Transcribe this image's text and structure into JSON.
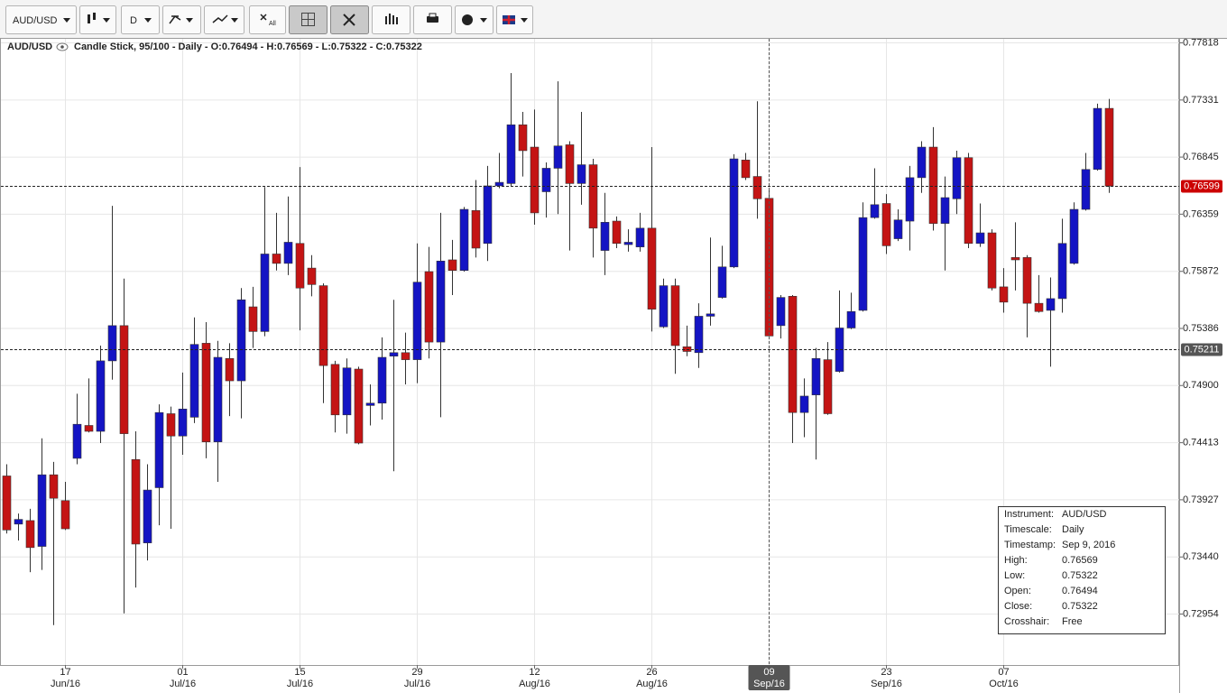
{
  "toolbar": {
    "symbol": "AUD/USD",
    "period": "D",
    "all": "All"
  },
  "chart_data": {
    "type": "candlestick",
    "title": "AUD/USD",
    "subtitle": "Candle Stick, 95/100 - Daily - O:0.76494 - H:0.76569 - L:0.75322 - C:0.75322",
    "categories": [
      null,
      null,
      null,
      null,
      null,
      {
        "day": "17",
        "month": "Jun/16"
      },
      null,
      null,
      null,
      null,
      null,
      null,
      null,
      null,
      null,
      {
        "day": "01",
        "month": "Jul/16"
      },
      null,
      null,
      null,
      null,
      null,
      null,
      null,
      null,
      null,
      {
        "day": "15",
        "month": "Jul/16"
      },
      null,
      null,
      null,
      null,
      null,
      null,
      null,
      null,
      null,
      {
        "day": "29",
        "month": "Jul/16"
      },
      null,
      null,
      null,
      null,
      null,
      null,
      null,
      null,
      null,
      {
        "day": "12",
        "month": "Aug/16"
      },
      null,
      null,
      null,
      null,
      null,
      null,
      null,
      null,
      null,
      {
        "day": "26",
        "month": "Aug/16"
      },
      null,
      null,
      null,
      null,
      null,
      null,
      null,
      null,
      null,
      {
        "day": "09",
        "month": "Sep/16"
      },
      null,
      null,
      null,
      null,
      null,
      null,
      null,
      null,
      null,
      {
        "day": "23",
        "month": "Sep/16"
      },
      null,
      null,
      null,
      null,
      null,
      null,
      null,
      null,
      null,
      {
        "day": "07",
        "month": "Oct/16"
      },
      null,
      null,
      null,
      null,
      null,
      null,
      null,
      null,
      null
    ],
    "open": [
      0.7413,
      0.7372,
      0.7375,
      0.7353,
      0.7414,
      0.7392,
      0.7428,
      0.7456,
      0.7451,
      0.7511,
      0.7541,
      0.7427,
      0.7356,
      0.7403,
      0.7466,
      0.7447,
      0.7463,
      0.7526,
      0.7442,
      0.7513,
      0.7494,
      0.7557,
      0.7536,
      0.7602,
      0.7594,
      0.7611,
      0.759,
      0.7575,
      0.7508,
      0.7465,
      0.7504,
      0.7473,
      0.7475,
      0.7515,
      0.7518,
      0.7512,
      0.7587,
      0.7527,
      0.7597,
      0.7588,
      0.7639,
      0.7611,
      0.766,
      0.7662,
      0.7712,
      0.7693,
      0.7655,
      0.7675,
      0.7695,
      0.7662,
      0.7678,
      0.7605,
      0.763,
      0.761,
      0.7608,
      0.7624,
      0.754,
      0.7575,
      0.7523,
      0.7518,
      0.7549,
      0.7565,
      0.7591,
      0.7682,
      0.7668,
      0.76494,
      0.7541,
      0.7566,
      0.7467,
      0.7482,
      0.7512,
      0.7502,
      0.7539,
      0.7554,
      0.7633,
      0.7645,
      0.7615,
      0.763,
      0.7667,
      0.7693,
      0.7628,
      0.7649,
      0.7684,
      0.7611,
      0.762,
      0.7574,
      0.7599,
      0.7599,
      0.756,
      0.7554,
      0.7564,
      0.7594,
      0.764,
      0.7674,
      0.7726
    ],
    "high": [
      0.7423,
      0.7381,
      0.7385,
      0.7445,
      0.7425,
      0.7408,
      0.7483,
      0.7496,
      0.7524,
      0.7643,
      0.7581,
      0.7451,
      0.7423,
      0.7474,
      0.7472,
      0.7501,
      0.7548,
      0.7544,
      0.7528,
      0.7526,
      0.7573,
      0.7574,
      0.7659,
      0.7637,
      0.7651,
      0.7676,
      0.7601,
      0.7577,
      0.7511,
      0.7513,
      0.7506,
      0.7491,
      0.7531,
      0.7563,
      0.7535,
      0.7611,
      0.7608,
      0.7637,
      0.7614,
      0.7642,
      0.7665,
      0.7677,
      0.7688,
      0.7756,
      0.7723,
      0.7725,
      0.768,
      0.7749,
      0.7698,
      0.7723,
      0.7683,
      0.7654,
      0.7634,
      0.7623,
      0.7637,
      0.7693,
      0.7581,
      0.7581,
      0.7541,
      0.756,
      0.7616,
      0.7609,
      0.7687,
      0.7688,
      0.7732,
      0.76569,
      0.7567,
      0.7567,
      0.7496,
      0.7522,
      0.7527,
      0.7571,
      0.7569,
      0.7646,
      0.7675,
      0.7653,
      0.764,
      0.7677,
      0.7698,
      0.771,
      0.7668,
      0.769,
      0.7688,
      0.7645,
      0.7623,
      0.759,
      0.7629,
      0.7601,
      0.7584,
      0.7582,
      0.7632,
      0.7646,
      0.7688,
      0.773,
      0.7734
    ],
    "low": [
      0.7364,
      0.7358,
      0.7331,
      0.7333,
      0.7286,
      0.7367,
      0.7423,
      0.745,
      0.7441,
      0.7495,
      0.7296,
      0.7318,
      0.7341,
      0.7371,
      0.7368,
      0.7431,
      0.7458,
      0.7428,
      0.7408,
      0.7464,
      0.7462,
      0.7522,
      0.7532,
      0.7588,
      0.7584,
      0.7537,
      0.7566,
      0.7475,
      0.745,
      0.7449,
      0.744,
      0.7456,
      0.7461,
      0.7417,
      0.7491,
      0.7492,
      0.7513,
      0.7463,
      0.7567,
      0.7587,
      0.7599,
      0.7596,
      0.7658,
      0.766,
      0.7668,
      0.7627,
      0.7633,
      0.7636,
      0.7605,
      0.7644,
      0.7599,
      0.7584,
      0.7607,
      0.7604,
      0.7604,
      0.7536,
      0.7539,
      0.75,
      0.7515,
      0.7505,
      0.7541,
      0.7564,
      0.759,
      0.7665,
      0.7632,
      0.75322,
      0.753,
      0.7441,
      0.7446,
      0.7427,
      0.7465,
      0.7501,
      0.7538,
      0.7553,
      0.7632,
      0.7602,
      0.7613,
      0.7605,
      0.7654,
      0.7622,
      0.7588,
      0.7636,
      0.7607,
      0.7608,
      0.7571,
      0.7552,
      0.7571,
      0.7531,
      0.7552,
      0.7506,
      0.7552,
      0.7593,
      0.7639,
      0.7673,
      0.7654
    ],
    "close": [
      0.7367,
      0.7376,
      0.7352,
      0.7414,
      0.7394,
      0.7368,
      0.7457,
      0.7451,
      0.7511,
      0.7541,
      0.7449,
      0.7355,
      0.7401,
      0.7467,
      0.7447,
      0.747,
      0.7525,
      0.7442,
      0.7514,
      0.7494,
      0.7563,
      0.7536,
      0.7602,
      0.7594,
      0.7612,
      0.7573,
      0.7576,
      0.7507,
      0.7465,
      0.7505,
      0.7441,
      0.7475,
      0.7514,
      0.7518,
      0.7512,
      0.7578,
      0.7527,
      0.7596,
      0.7588,
      0.764,
      0.7607,
      0.766,
      0.7663,
      0.7712,
      0.769,
      0.7637,
      0.7675,
      0.7694,
      0.7662,
      0.7678,
      0.7624,
      0.7629,
      0.7611,
      0.7612,
      0.7624,
      0.7555,
      0.7575,
      0.7524,
      0.7519,
      0.7549,
      0.7551,
      0.7591,
      0.7683,
      0.7667,
      0.7649,
      0.75322,
      0.7565,
      0.7467,
      0.7481,
      0.7513,
      0.7466,
      0.7539,
      0.7553,
      0.7633,
      0.7644,
      0.7609,
      0.7631,
      0.7667,
      0.7693,
      0.7628,
      0.765,
      0.7684,
      0.7611,
      0.762,
      0.7573,
      0.7561,
      0.7597,
      0.756,
      0.7553,
      0.7564,
      0.7611,
      0.764,
      0.7674,
      0.7726,
      0.76599
    ],
    "up_color": "#1414c4",
    "down_color": "#c41414",
    "ylim": [
      0.7252,
      0.7786
    ],
    "yticks": [
      0.77818,
      0.77331,
      0.76845,
      0.76359,
      0.75872,
      0.75386,
      {
        "value": 0.749,
        "label": "0.74900"
      },
      0.74413,
      0.73927,
      {
        "value": 0.7344,
        "label": "0.73440"
      },
      0.72954
    ],
    "grid": true,
    "levels": [
      {
        "value": 0.76599,
        "color": "#cc0000"
      },
      {
        "value": 0.75211,
        "color": "#555555"
      }
    ],
    "crosshair_index": 65,
    "info": [
      {
        "label": "Instrument:",
        "value": "AUD/USD"
      },
      {
        "label": "Timescale:",
        "value": "Daily"
      },
      {
        "label": "Timestamp:",
        "value": "Sep 9, 2016"
      },
      {
        "label": "High:",
        "value": "0.76569"
      },
      {
        "label": "Low:",
        "value": "0.75322"
      },
      {
        "label": "Open:",
        "value": "0.76494"
      },
      {
        "label": "Close:",
        "value": "0.75322"
      },
      {
        "label": "Crosshair:",
        "value": "Free"
      }
    ]
  }
}
